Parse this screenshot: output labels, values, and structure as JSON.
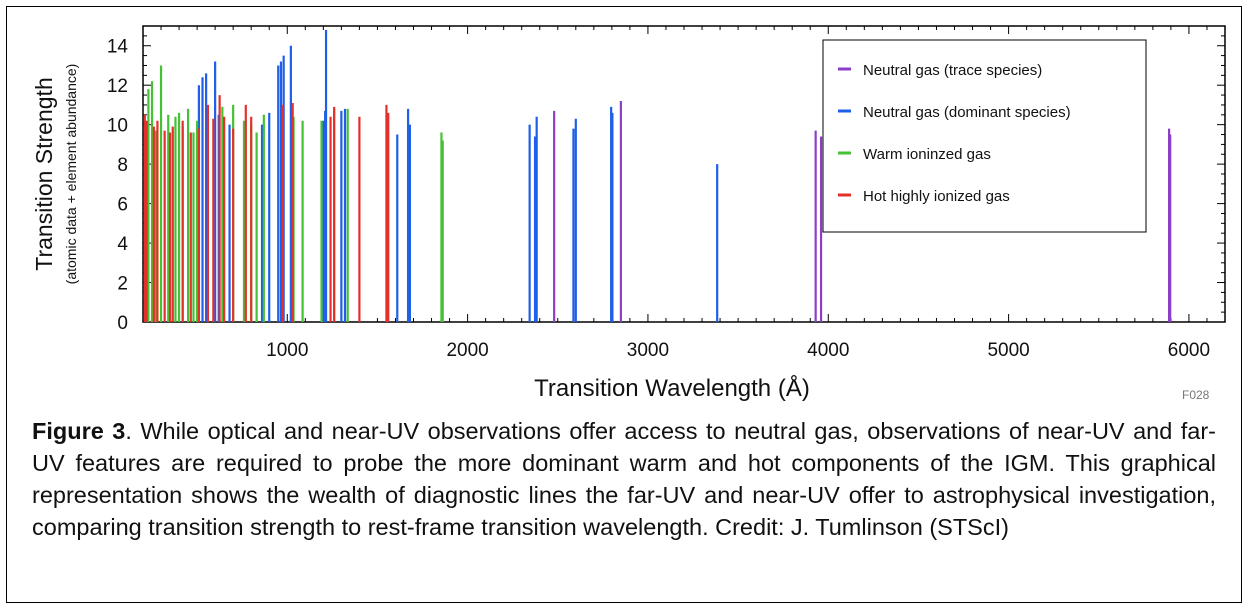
{
  "chart_data": {
    "type": "bar",
    "xlabel": "Transition Wavelength (Å)",
    "ylabel": "Transition Strength",
    "ylabel_sub": "(atomic data + element abundance)",
    "xlim": [
      200,
      6200
    ],
    "ylim": [
      0,
      15
    ],
    "xticks": [
      1000,
      2000,
      3000,
      4000,
      5000,
      6000
    ],
    "yticks": [
      0,
      2,
      4,
      6,
      8,
      10,
      12,
      14
    ],
    "grid": false,
    "legend_position": "top-right",
    "series": [
      {
        "name": "Neutral gas (trace species)",
        "color": "#8b3fc9",
        "lines": [
          [
            2480,
            10.7
          ],
          [
            2850,
            11.2
          ],
          [
            3930,
            9.7
          ],
          [
            3960,
            9.4
          ],
          [
            5890,
            9.8
          ],
          [
            5896,
            9.5
          ]
        ]
      },
      {
        "name": "Neutral gas (dominant species)",
        "color": "#1f5ee8",
        "lines": [
          [
            510,
            12.0
          ],
          [
            530,
            12.4
          ],
          [
            550,
            12.6
          ],
          [
            600,
            13.2
          ],
          [
            620,
            10.5
          ],
          [
            680,
            10.0
          ],
          [
            860,
            10.0
          ],
          [
            900,
            10.6
          ],
          [
            950,
            13.0
          ],
          [
            965,
            13.2
          ],
          [
            980,
            13.5
          ],
          [
            1020,
            14.0
          ],
          [
            1200,
            10.2
          ],
          [
            1210,
            10.7
          ],
          [
            1215,
            14.8
          ],
          [
            1300,
            10.7
          ],
          [
            1320,
            10.8
          ],
          [
            1610,
            9.5
          ],
          [
            1670,
            10.8
          ],
          [
            1680,
            10.0
          ],
          [
            2344,
            10.0
          ],
          [
            2374,
            9.4
          ],
          [
            2383,
            10.4
          ],
          [
            2587,
            9.8
          ],
          [
            2600,
            10.3
          ],
          [
            2796,
            10.9
          ],
          [
            2803,
            10.6
          ],
          [
            3384,
            8.0
          ]
        ]
      },
      {
        "name": "Warm ioninzed gas",
        "color": "#46c034",
        "lines": [
          [
            230,
            11.8
          ],
          [
            250,
            12.2
          ],
          [
            270,
            9.7
          ],
          [
            300,
            13.0
          ],
          [
            340,
            10.5
          ],
          [
            380,
            10.4
          ],
          [
            400,
            10.6
          ],
          [
            420,
            9.9
          ],
          [
            450,
            10.8
          ],
          [
            480,
            9.6
          ],
          [
            500,
            10.2
          ],
          [
            640,
            10.9
          ],
          [
            700,
            11.0
          ],
          [
            760,
            10.2
          ],
          [
            800,
            10.0
          ],
          [
            830,
            9.6
          ],
          [
            870,
            10.5
          ],
          [
            1035,
            10.4
          ],
          [
            1085,
            10.2
          ],
          [
            1190,
            10.2
          ],
          [
            1260,
            10.8
          ],
          [
            1335,
            10.8
          ],
          [
            1855,
            9.6
          ],
          [
            1862,
            9.2
          ]
        ]
      },
      {
        "name": "Hot highly ionized gas",
        "color": "#e4302a",
        "lines": [
          [
            210,
            10.5
          ],
          [
            220,
            10.2
          ],
          [
            260,
            9.9
          ],
          [
            280,
            10.2
          ],
          [
            320,
            9.7
          ],
          [
            350,
            9.6
          ],
          [
            365,
            9.9
          ],
          [
            420,
            10.2
          ],
          [
            465,
            9.6
          ],
          [
            510,
            9.8
          ],
          [
            560,
            11.0
          ],
          [
            590,
            10.3
          ],
          [
            625,
            11.5
          ],
          [
            650,
            10.4
          ],
          [
            700,
            9.8
          ],
          [
            770,
            11.0
          ],
          [
            800,
            10.4
          ],
          [
            975,
            11.0
          ],
          [
            1030,
            11.1
          ],
          [
            1240,
            10.4
          ],
          [
            1260,
            10.9
          ],
          [
            1400,
            10.4
          ],
          [
            1550,
            11.0
          ],
          [
            1560,
            10.6
          ]
        ]
      }
    ]
  },
  "figure_code": "F028",
  "caption": {
    "label": "Figure 3",
    "text": ". While optical and near-UV observations offer access to neutral gas, observations of near-UV and far-UV features are required to probe the more dominant warm and hot components of the IGM. This graphical representation shows the wealth of diagnostic lines the far-UV and near-UV offer to astrophysical investigation, comparing transition strength to rest-frame transition wavelength. Credit: J. Tumlinson (STScI)"
  }
}
